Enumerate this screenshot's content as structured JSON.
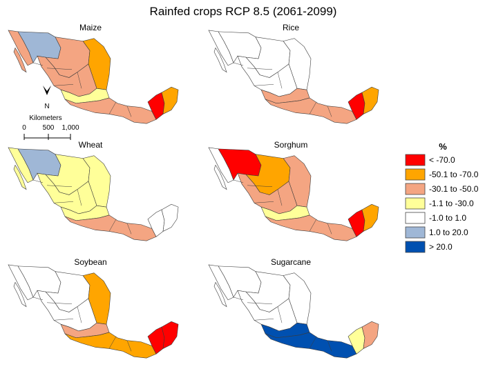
{
  "title": "Rainfed crops RCP 8.5 (2061-2099)",
  "scale": {
    "north_label": "N",
    "unit_label": "Kilometers",
    "ticks": [
      "0",
      "500",
      "1,000"
    ]
  },
  "legend": {
    "heading": "%",
    "items": [
      {
        "label": "< -70.0",
        "color": "#ff0000"
      },
      {
        "label": "-50.1 to -70.0",
        "color": "#ffa500"
      },
      {
        "label": "-30.1 to -50.0",
        "color": "#f4a582"
      },
      {
        "label": "-1.1 to -30.0",
        "color": "#ffff99"
      },
      {
        "label": "-1.0 to 1.0",
        "color": "#ffffff"
      },
      {
        "label": "1.0 to 20.0",
        "color": "#9fb7d6"
      },
      {
        "label": "> 20.0",
        "color": "#0050b0"
      }
    ]
  },
  "panels": [
    {
      "name": "Maize",
      "class_by_zone": {
        "nw": 2,
        "sonora": 5,
        "north": 2,
        "northeast": 1,
        "central": 2,
        "bajio": 3,
        "south": 2,
        "yucatan_w": 0,
        "yucatan_e": 1
      }
    },
    {
      "name": "Rice",
      "class_by_zone": {
        "nw": 4,
        "sonora": 4,
        "north": 4,
        "northeast": 4,
        "central": 4,
        "bajio": 2,
        "south": 2,
        "yucatan_w": 0,
        "yucatan_e": 1
      }
    },
    {
      "name": "Wheat",
      "class_by_zone": {
        "nw": 3,
        "sonora": 5,
        "north": 3,
        "northeast": 3,
        "central": 3,
        "bajio": 3,
        "south": 2,
        "yucatan_w": 4,
        "yucatan_e": 4
      }
    },
    {
      "name": "Sorghum",
      "class_by_zone": {
        "nw": 4,
        "sonora": 0,
        "north": 1,
        "northeast": 2,
        "central": 2,
        "bajio": 3,
        "south": 2,
        "yucatan_w": 0,
        "yucatan_e": 1
      }
    },
    {
      "name": "Soybean",
      "class_by_zone": {
        "nw": 4,
        "sonora": 4,
        "north": 4,
        "northeast": 1,
        "central": 4,
        "bajio": 2,
        "south": 1,
        "yucatan_w": 0,
        "yucatan_e": 0
      }
    },
    {
      "name": "Sugarcane",
      "class_by_zone": {
        "nw": 4,
        "sonora": 4,
        "north": 4,
        "northeast": 4,
        "central": 4,
        "bajio": 6,
        "south": 6,
        "yucatan_w": 3,
        "yucatan_e": 2
      }
    }
  ]
}
